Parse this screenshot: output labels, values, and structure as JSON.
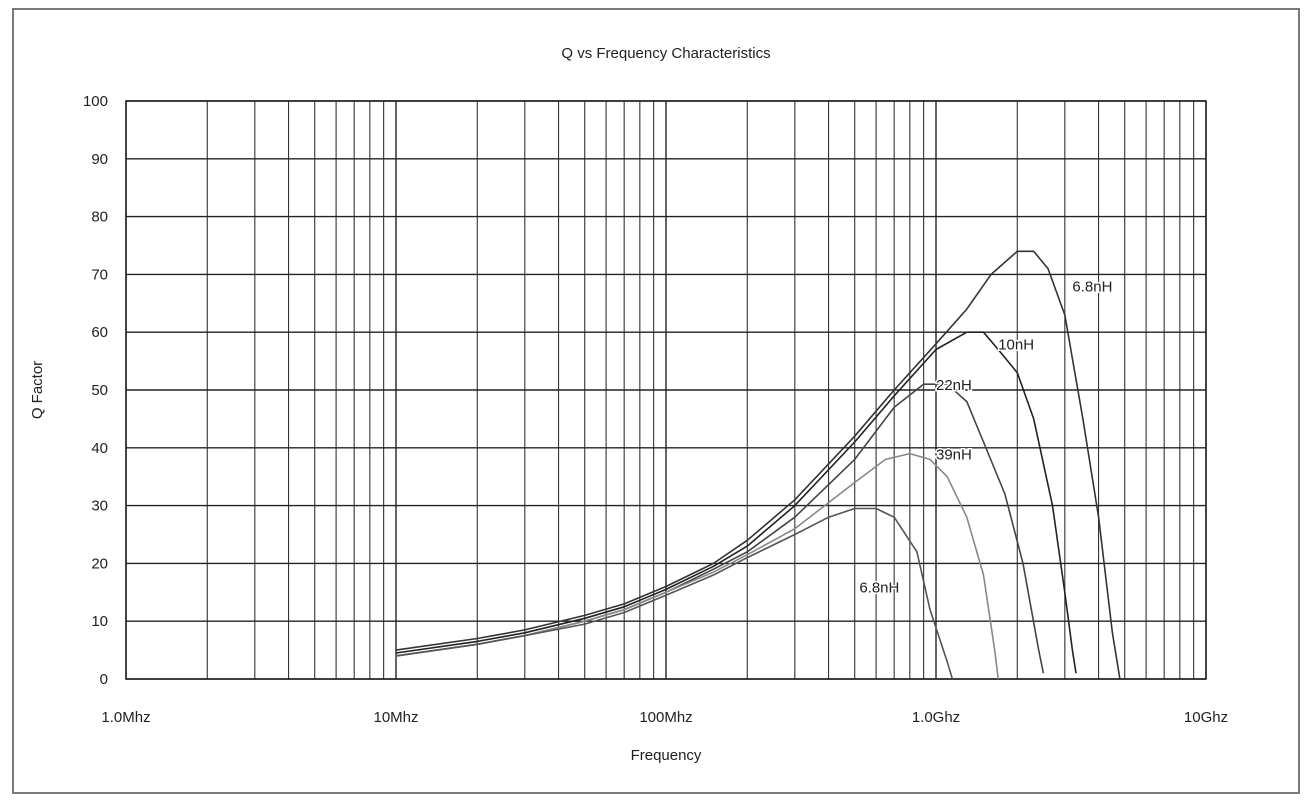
{
  "chart_data": {
    "type": "line",
    "title": "Q vs Frequency Characteristics",
    "xlabel": "Frequency",
    "ylabel": "Q Factor",
    "x_scale": "log",
    "xlim": [
      1,
      10000
    ],
    "ylim": [
      0,
      100
    ],
    "x_ticks": [
      {
        "value": 1,
        "label": "1.0Mhz"
      },
      {
        "value": 10,
        "label": "10Mhz"
      },
      {
        "value": 100,
        "label": "100Mhz"
      },
      {
        "value": 1000,
        "label": "1.0Ghz"
      },
      {
        "value": 10000,
        "label": "10Ghz"
      }
    ],
    "y_ticks": [
      0,
      10,
      20,
      30,
      40,
      50,
      60,
      70,
      80,
      90,
      100
    ],
    "grid": true,
    "legend": "none",
    "series": [
      {
        "name": "6.8nH",
        "color": "#333333",
        "points": [
          [
            10,
            5
          ],
          [
            20,
            7
          ],
          [
            30,
            8.5
          ],
          [
            50,
            11
          ],
          [
            70,
            13
          ],
          [
            100,
            16
          ],
          [
            150,
            20
          ],
          [
            200,
            24
          ],
          [
            300,
            31
          ],
          [
            500,
            42
          ],
          [
            700,
            50
          ],
          [
            1000,
            58
          ],
          [
            1300,
            64
          ],
          [
            1600,
            70
          ],
          [
            2000,
            74
          ],
          [
            2300,
            74
          ],
          [
            2600,
            71
          ],
          [
            3000,
            63
          ],
          [
            3500,
            45
          ],
          [
            4000,
            28
          ],
          [
            4500,
            8
          ],
          [
            4800,
            0
          ]
        ]
      },
      {
        "name": "10nH",
        "color": "#222222",
        "points": [
          [
            10,
            4.5
          ],
          [
            20,
            6.5
          ],
          [
            30,
            8
          ],
          [
            50,
            10.5
          ],
          [
            70,
            12.5
          ],
          [
            100,
            15.5
          ],
          [
            150,
            19.5
          ],
          [
            200,
            23
          ],
          [
            300,
            30
          ],
          [
            500,
            41
          ],
          [
            700,
            49
          ],
          [
            1000,
            57
          ],
          [
            1300,
            60
          ],
          [
            1500,
            60
          ],
          [
            1700,
            57
          ],
          [
            2000,
            53
          ],
          [
            2300,
            45
          ],
          [
            2700,
            30
          ],
          [
            3000,
            15
          ],
          [
            3200,
            5
          ],
          [
            3300,
            1
          ]
        ]
      },
      {
        "name": "22nH",
        "color": "#444444",
        "points": [
          [
            10,
            4
          ],
          [
            20,
            6
          ],
          [
            30,
            7.5
          ],
          [
            50,
            10
          ],
          [
            70,
            12
          ],
          [
            100,
            15
          ],
          [
            150,
            19
          ],
          [
            200,
            22
          ],
          [
            300,
            28
          ],
          [
            500,
            38
          ],
          [
            700,
            47
          ],
          [
            900,
            51
          ],
          [
            1100,
            51
          ],
          [
            1300,
            48
          ],
          [
            1500,
            41
          ],
          [
            1800,
            32
          ],
          [
            2100,
            20
          ],
          [
            2400,
            5
          ],
          [
            2500,
            1
          ]
        ]
      },
      {
        "name": "39nH",
        "color": "#888888",
        "points": [
          [
            10,
            4
          ],
          [
            20,
            6
          ],
          [
            30,
            7.5
          ],
          [
            50,
            10
          ],
          [
            70,
            12
          ],
          [
            100,
            15
          ],
          [
            150,
            18.5
          ],
          [
            200,
            21.5
          ],
          [
            300,
            26
          ],
          [
            500,
            34
          ],
          [
            650,
            38
          ],
          [
            800,
            39
          ],
          [
            950,
            38
          ],
          [
            1100,
            35
          ],
          [
            1300,
            28
          ],
          [
            1500,
            18
          ],
          [
            1650,
            5
          ],
          [
            1700,
            0
          ]
        ]
      },
      {
        "name": "6.8nH",
        "color": "#555555",
        "points": [
          [
            10,
            4
          ],
          [
            20,
            6
          ],
          [
            30,
            7.5
          ],
          [
            50,
            9.5
          ],
          [
            70,
            11.5
          ],
          [
            100,
            14.5
          ],
          [
            150,
            18
          ],
          [
            200,
            21
          ],
          [
            300,
            25
          ],
          [
            400,
            28
          ],
          [
            500,
            29.5
          ],
          [
            600,
            29.5
          ],
          [
            700,
            28
          ],
          [
            850,
            22
          ],
          [
            950,
            12
          ],
          [
            1100,
            3
          ],
          [
            1150,
            0
          ]
        ]
      }
    ],
    "annotations": [
      {
        "text": "6.8nH",
        "series": 0,
        "at_x": 3200,
        "at_y": 67
      },
      {
        "text": "10nH",
        "series": 1,
        "at_x": 1700,
        "at_y": 57
      },
      {
        "text": "22nH",
        "series": 2,
        "at_x": 1000,
        "at_y": 50
      },
      {
        "text": "39nH",
        "series": 3,
        "at_x": 1000,
        "at_y": 38
      },
      {
        "text": "6.8nH",
        "series": 4,
        "at_x": 520,
        "at_y": 15
      }
    ]
  }
}
